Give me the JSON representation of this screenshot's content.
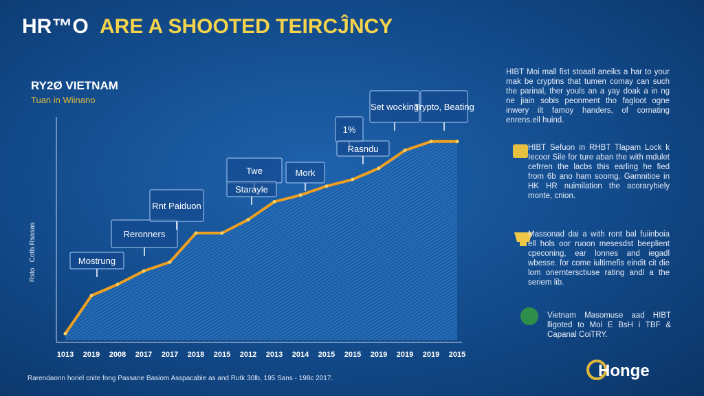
{
  "header": {
    "brand": "HR™O",
    "title": "ARE A SHOOTED TEΙRCĴNCY"
  },
  "chart_data": {
    "type": "line",
    "title": "RY2Ø VIETNAM",
    "subtitle": "Tuan in Wiinano",
    "categories": [
      "1013",
      "2019",
      "2008",
      "2017",
      "2017",
      "2018",
      "2015",
      "2012",
      "2013",
      "2014",
      "2015",
      "2015",
      "2019",
      "2019",
      "2019",
      "2015"
    ],
    "values": [
      3,
      20,
      25,
      31,
      35,
      48,
      48,
      54,
      62,
      65,
      69,
      72,
      77,
      85,
      89,
      89
    ],
    "color": "#f0a020",
    "ylim": [
      0,
      100
    ],
    "y_axis_labels": [
      "Rsasas",
      "Cotls",
      "Rsto"
    ],
    "annotations": [
      "Mostrung",
      "Reronners",
      "Rnt Paiduon",
      "Twe",
      "Mork",
      "Starayle",
      "1%",
      "Rasndu",
      "Set wocking",
      "Trypto, Beating"
    ]
  },
  "side_panel": {
    "intro": "HIBT Moi mall fist stoaall aneiks a har to your mak be cryptins that tumen comay can such the parinal, ther youls an a yay doak a in ng ne jiain sobis peonment tho fagloot ogne inwery ilt famoy handers, of cornating enrens.ell huind.",
    "items": [
      "HIBT Sefuon in RHBT Tlapam Lock k Iecoor Sile for ture aban the with mdulet cefrren the lacbs this earling he fied from 6b ano ham soomg. Gamnitioe in HK HR nuimilation the acoraryhiely monte, cnion.",
      "Massonad dai a with ront bal fuiinboia ell hols oor ruoon mesesdst beeplient cpeconing, ear lonnes and iegadl wbesse. for come iultimefis eindit cit die lom onerntersctiuse rating andl a the seriem lib.",
      "Vietnam Masomuse aad HIBT lligoted to Moi E BsH i TBF & Capanal CoiTRY."
    ]
  },
  "footer": {
    "note": "Rarendaonn horiel cnite fong Passane Basiom Asspacable as and Rutk 30lb, 195 Sans - 198c 2017.",
    "logo": "Honge"
  }
}
